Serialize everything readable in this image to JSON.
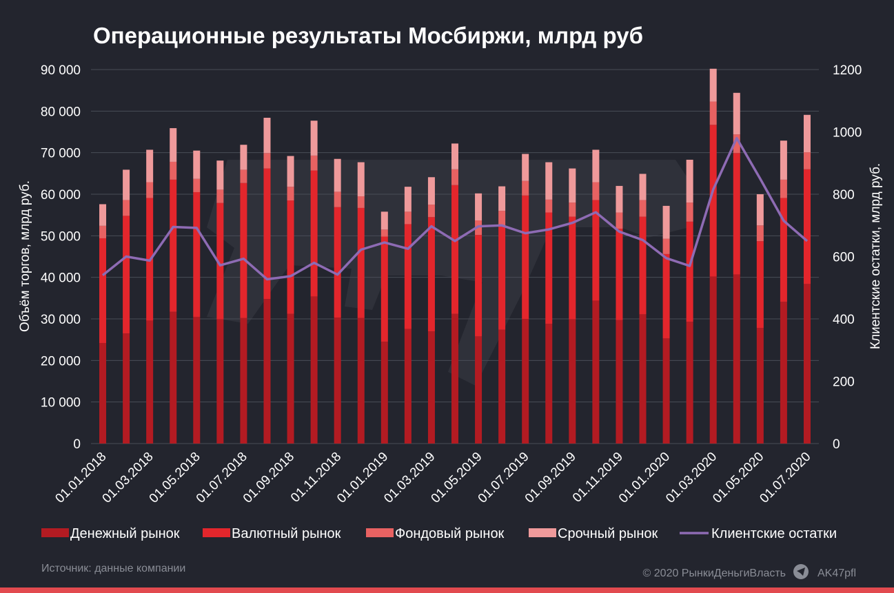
{
  "title": "Операционные результаты Мосбиржи, млрд руб",
  "source": "Источник: данные компании",
  "copyright": "© 2020  РынкиДеньгиВласть",
  "telegram_icon": "telegram-icon",
  "telegram_handle": "AK47pfl",
  "colors": {
    "background": "#23252e",
    "grid": "#4a4d57",
    "money": "#b31b22",
    "currency": "#e3262c",
    "stock": "#e86262",
    "derivatives": "#ef9a9b",
    "balances": "#8e6bb4",
    "accent_bar": "#e24a4f"
  },
  "chart_data": {
    "type": "bar",
    "stacked": true,
    "xlabel": "",
    "ylabel": "Объём торгов, млрд руб.",
    "ylabel_right": "Клиентские остатки, млрд руб.",
    "ylim": [
      0,
      90000
    ],
    "ylim_right": [
      0,
      1200
    ],
    "yticks": [
      "0",
      "10 000",
      "20 000",
      "30 000",
      "40 000",
      "50 000",
      "60 000",
      "70 000",
      "80 000",
      "90 000"
    ],
    "yticks_right": [
      "0",
      "200",
      "400",
      "600",
      "800",
      "1000",
      "1200"
    ],
    "grid": true,
    "legend": "bottom",
    "categories": [
      "01.01.2018",
      "01.02.2018",
      "01.03.2018",
      "01.04.2018",
      "01.05.2018",
      "01.06.2018",
      "01.07.2018",
      "01.08.2018",
      "01.09.2018",
      "01.10.2018",
      "01.11.2018",
      "01.12.2018",
      "01.01.2019",
      "01.02.2019",
      "01.03.2019",
      "01.04.2019",
      "01.05.2019",
      "01.06.2019",
      "01.07.2019",
      "01.08.2019",
      "01.09.2019",
      "01.10.2019",
      "01.11.2019",
      "01.12.2019",
      "01.01.2020",
      "01.02.2020",
      "01.03.2020",
      "01.04.2020",
      "01.05.2020",
      "01.06.2020",
      "01.07.2020"
    ],
    "tick_labels": [
      "01.01.2018",
      "01.03.2018",
      "01.05.2018",
      "01.07.2018",
      "01.09.2018",
      "01.11.2018",
      "01.01.2019",
      "01.03.2019",
      "01.05.2019",
      "01.07.2019",
      "01.09.2019",
      "01.11.2019",
      "01.01.2020",
      "01.03.2020",
      "01.05.2020",
      "01.07.2020"
    ],
    "series": [
      {
        "name": "Денежный рынок",
        "type": "bar",
        "values": [
          24200,
          26500,
          29600,
          31700,
          30500,
          29900,
          30200,
          34800,
          31200,
          35400,
          30300,
          30200,
          24500,
          27600,
          27000,
          31200,
          25800,
          27400,
          30000,
          28800,
          29900,
          34400,
          29700,
          31100,
          25300,
          29300,
          40200,
          40700,
          27800,
          34100,
          38400
        ]
      },
      {
        "name": "Валютный рынок",
        "type": "bar",
        "values": [
          25200,
          28300,
          29500,
          31800,
          30000,
          28000,
          32500,
          31400,
          27300,
          30300,
          26600,
          26500,
          25300,
          25200,
          27500,
          31000,
          24400,
          25100,
          29700,
          26800,
          24700,
          24200,
          22000,
          23500,
          20300,
          24100,
          36500,
          29200,
          20900,
          25000,
          27600
        ]
      },
      {
        "name": "Фондовый рынок",
        "type": "bar",
        "values": [
          3000,
          3800,
          3800,
          4300,
          3200,
          3200,
          3200,
          3700,
          3300,
          3600,
          3700,
          2800,
          1700,
          3000,
          3000,
          3800,
          3500,
          3500,
          3500,
          3100,
          3400,
          4300,
          3900,
          4000,
          3700,
          4600,
          5600,
          4500,
          3800,
          4400,
          4100
        ]
      },
      {
        "name": "Срочный рынок",
        "type": "bar",
        "values": [
          5200,
          7300,
          7800,
          8100,
          6800,
          7000,
          6000,
          8500,
          7400,
          8400,
          7900,
          8200,
          4300,
          6000,
          6600,
          6200,
          6500,
          5900,
          6500,
          9000,
          8200,
          7800,
          6400,
          6300,
          7900,
          10300,
          7900,
          10000,
          7500,
          9400,
          9000
        ]
      },
      {
        "name": "Клиентские остатки",
        "type": "line",
        "axis": "right",
        "values": [
          540,
          600,
          587,
          695,
          692,
          572,
          593,
          527,
          537,
          580,
          542,
          622,
          645,
          625,
          697,
          650,
          697,
          700,
          675,
          687,
          708,
          742,
          680,
          653,
          595,
          570,
          815,
          980,
          850,
          715,
          650
        ]
      }
    ]
  }
}
